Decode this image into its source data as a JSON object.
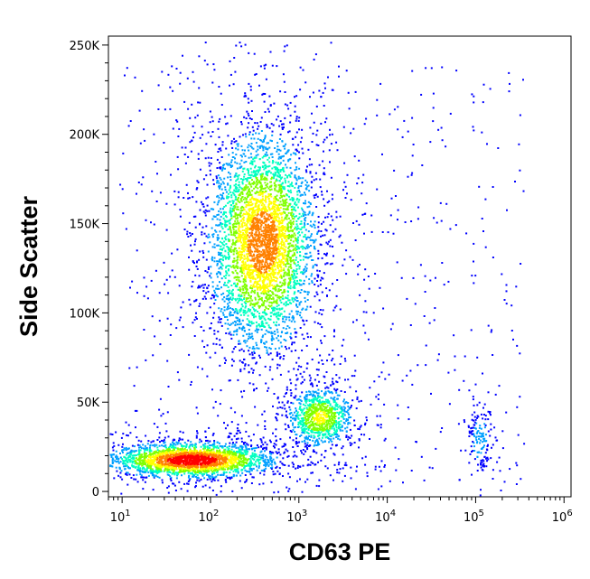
{
  "chart_data": {
    "type": "scatter",
    "subtype": "flow-cytometry density dot plot",
    "xlabel": "CD63 PE",
    "ylabel": "Side Scatter",
    "x_scale": "log",
    "xlim": [
      7,
      1200000
    ],
    "x_ticks": [
      {
        "value": 10,
        "base": "10",
        "exp": "1"
      },
      {
        "value": 100,
        "base": "10",
        "exp": "2"
      },
      {
        "value": 1000,
        "base": "10",
        "exp": "3"
      },
      {
        "value": 10000,
        "base": "10",
        "exp": "4"
      },
      {
        "value": 100000,
        "base": "10",
        "exp": "5"
      },
      {
        "value": 1000000,
        "base": "10",
        "exp": "6"
      }
    ],
    "ylim": [
      -3000,
      255000
    ],
    "y_ticks": [
      {
        "value": 0,
        "label": "0"
      },
      {
        "value": 50000,
        "label": "50K"
      },
      {
        "value": 100000,
        "label": "100K"
      },
      {
        "value": 150000,
        "label": "150K"
      },
      {
        "value": 200000,
        "label": "200K"
      },
      {
        "value": 250000,
        "label": "250K"
      }
    ],
    "grid": false,
    "legend": "none",
    "color_scale": [
      "#0000ff",
      "#00a0ff",
      "#00ffc0",
      "#80ff00",
      "#ffff00",
      "#ff8000",
      "#ff0000"
    ],
    "populations": [
      {
        "center_x": 60,
        "center_y": 18000,
        "spread_log_x": 0.42,
        "spread_y": 4500,
        "peak_density": 1.0
      },
      {
        "center_x": 380,
        "center_y": 140000,
        "spread_log_x": 0.28,
        "spread_y": 28000,
        "peak_density": 0.75
      },
      {
        "center_x": 1700,
        "center_y": 42000,
        "spread_log_x": 0.18,
        "spread_y": 8000,
        "peak_density": 0.5
      },
      {
        "center_x": 110000,
        "center_y": 30000,
        "spread_log_x": 0.07,
        "spread_y": 10000,
        "peak_density": 0.12
      }
    ]
  }
}
